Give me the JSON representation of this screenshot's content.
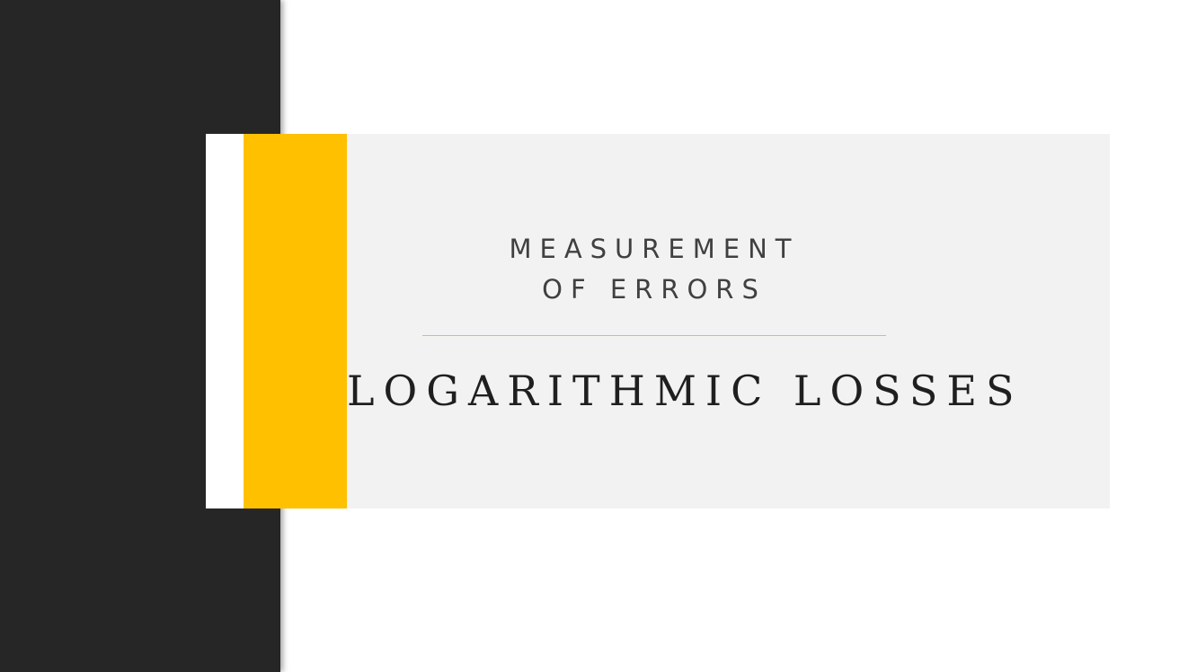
{
  "slide": {
    "subtitle_line1": "MEASUREMENT",
    "subtitle_line2": "OF ERRORS",
    "title": "LOGARITHMIC LOSSES"
  },
  "colors": {
    "dark_panel": "#262626",
    "accent": "#ffc000",
    "content_bg": "#f2f2f2",
    "subtitle_text": "#404040",
    "title_text": "#1f1f1f"
  }
}
